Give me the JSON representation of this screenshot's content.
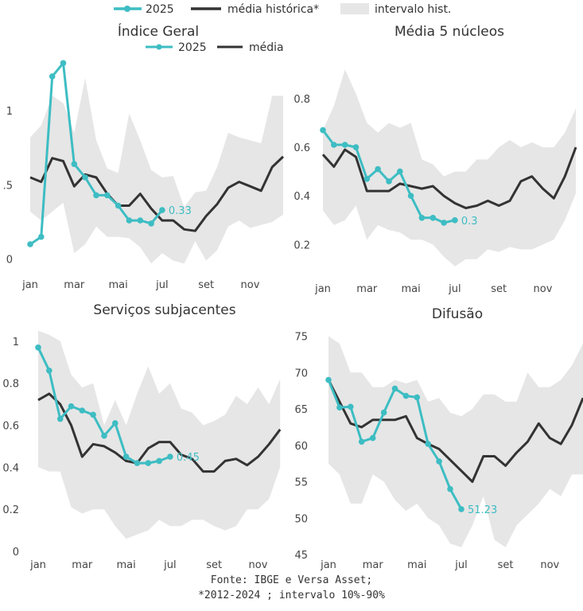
{
  "legend": {
    "series_2025": "2025",
    "series_media": "média histórica*",
    "series_band": "intervalo hist."
  },
  "colors": {
    "y2025": "#3dbdc3",
    "media": "#333333",
    "band": "#e6e6e6"
  },
  "footer": {
    "line1": "Fonte: IBGE e Versa Asset;",
    "line2": "*2012-2024 ; intervalo 10%-90%"
  },
  "chart_data": [
    {
      "type": "line",
      "title": "Índice Geral",
      "inner_legend": {
        "series_2025": "2025",
        "series_media": "média"
      },
      "x_ticks": [
        "jan",
        "mar",
        "mai",
        "jul",
        "set",
        "nov"
      ],
      "y_ticks": [
        "0",
        ".5",
        "1"
      ],
      "ylim": [
        -0.05,
        1.37
      ],
      "media": [
        0.55,
        0.52,
        0.68,
        0.66,
        0.49,
        0.57,
        0.55,
        0.44,
        0.36,
        0.36,
        0.44,
        0.34,
        0.26,
        0.26,
        0.2,
        0.19,
        0.29,
        0.37,
        0.48,
        0.52,
        0.49,
        0.46,
        0.62,
        0.69
      ],
      "band_low": [
        0.32,
        0.26,
        0.32,
        0.38,
        0.04,
        0.1,
        0.22,
        0.15,
        0.15,
        0.14,
        0.08,
        -0.03,
        0.04,
        -0.01,
        -0.03,
        0.12,
        -0.01,
        0.06,
        0.22,
        0.26,
        0.21,
        0.23,
        0.25,
        0.3
      ],
      "band_high": [
        0.82,
        0.9,
        1.1,
        1.05,
        0.85,
        1.22,
        0.8,
        0.61,
        0.58,
        0.98,
        0.8,
        0.6,
        0.55,
        0.56,
        0.35,
        0.45,
        0.46,
        0.62,
        0.85,
        0.82,
        0.8,
        0.78,
        1.1,
        1.1
      ],
      "y2025": [
        0.1,
        0.15,
        1.23,
        1.32,
        0.64,
        0.55,
        0.43,
        0.43,
        0.36,
        0.26,
        0.26,
        0.24,
        0.33
      ],
      "end_label": "0.33"
    },
    {
      "type": "line",
      "title": "Média 5 núcleos",
      "x_ticks": [
        "jan",
        "mar",
        "mai",
        "jul",
        "set",
        "nov"
      ],
      "y_ticks": [
        "0.2",
        "0.4",
        "0.6",
        "0.8"
      ],
      "ylim": [
        0.1,
        0.95
      ],
      "media": [
        0.57,
        0.52,
        0.59,
        0.56,
        0.42,
        0.42,
        0.42,
        0.45,
        0.44,
        0.43,
        0.44,
        0.4,
        0.37,
        0.35,
        0.36,
        0.38,
        0.36,
        0.38,
        0.46,
        0.48,
        0.43,
        0.39,
        0.48,
        0.6
      ],
      "band_low": [
        0.34,
        0.28,
        0.3,
        0.36,
        0.22,
        0.28,
        0.26,
        0.25,
        0.22,
        0.22,
        0.2,
        0.15,
        0.11,
        0.14,
        0.14,
        0.18,
        0.17,
        0.19,
        0.18,
        0.18,
        0.2,
        0.22,
        0.3,
        0.41
      ],
      "band_high": [
        0.67,
        0.77,
        0.92,
        0.82,
        0.7,
        0.66,
        0.7,
        0.68,
        0.7,
        0.55,
        0.53,
        0.48,
        0.5,
        0.5,
        0.55,
        0.55,
        0.6,
        0.63,
        0.6,
        0.62,
        0.6,
        0.6,
        0.66,
        0.76
      ],
      "y2025": [
        0.67,
        0.61,
        0.61,
        0.6,
        0.47,
        0.51,
        0.46,
        0.5,
        0.4,
        0.31,
        0.31,
        0.29,
        0.3
      ],
      "end_label": "0.3"
    },
    {
      "type": "line",
      "title": "Serviços subjacentes",
      "x_ticks": [
        "jan",
        "mar",
        "mai",
        "jul",
        "set",
        "nov"
      ],
      "y_ticks": [
        "0",
        "0.2",
        "0.4",
        "0.6",
        "0.8",
        "1"
      ],
      "ylim": [
        0.0,
        1.06
      ],
      "media": [
        0.72,
        0.75,
        0.7,
        0.6,
        0.45,
        0.51,
        0.5,
        0.47,
        0.43,
        0.42,
        0.49,
        0.52,
        0.52,
        0.46,
        0.44,
        0.38,
        0.38,
        0.43,
        0.44,
        0.41,
        0.45,
        0.51,
        0.58
      ],
      "band_low": [
        0.4,
        0.38,
        0.38,
        0.21,
        0.18,
        0.2,
        0.2,
        0.12,
        0.06,
        0.08,
        0.1,
        0.15,
        0.12,
        0.12,
        0.15,
        0.15,
        0.12,
        0.1,
        0.12,
        0.2,
        0.2,
        0.25,
        0.4
      ],
      "band_high": [
        1.05,
        1.03,
        1.0,
        0.84,
        0.78,
        0.8,
        0.6,
        0.72,
        0.6,
        0.75,
        0.88,
        0.75,
        0.8,
        0.68,
        0.66,
        0.6,
        0.62,
        0.65,
        0.74,
        0.7,
        0.78,
        0.7,
        0.82
      ],
      "y2025": [
        0.97,
        0.86,
        0.63,
        0.69,
        0.67,
        0.65,
        0.55,
        0.61,
        0.45,
        0.42,
        0.42,
        0.43,
        0.45
      ],
      "end_label": "0.45"
    },
    {
      "type": "line",
      "title": "Difusão",
      "x_ticks": [
        "jan",
        "mar",
        "mai",
        "jul",
        "set",
        "nov"
      ],
      "y_ticks": [
        "45",
        "50",
        "55",
        "60",
        "65",
        "70",
        "75"
      ],
      "ylim": [
        45,
        75.5
      ],
      "media": [
        69,
        66,
        63,
        62.5,
        63.5,
        63.5,
        63.5,
        64,
        61,
        60.2,
        59.5,
        58,
        56.5,
        55,
        58.5,
        58.5,
        57.2,
        59,
        60.5,
        63,
        61,
        60.2,
        62.8,
        66.5
      ],
      "band_low": [
        57.5,
        56,
        52,
        52,
        56,
        55,
        52.5,
        51,
        52,
        50,
        49,
        46.5,
        46,
        49,
        53,
        47,
        46,
        49,
        50.5,
        52,
        54,
        53,
        56,
        56
      ],
      "band_high": [
        75,
        74,
        70,
        70,
        68,
        68,
        69,
        68.5,
        69,
        66,
        66.5,
        64.5,
        64,
        65,
        67,
        67,
        66,
        66,
        70,
        68,
        68,
        69,
        71,
        74
      ],
      "y2025": [
        69,
        65.2,
        65.3,
        60.5,
        61,
        64.5,
        67.8,
        66.8,
        66.6,
        60.2,
        57.8,
        54,
        51.23
      ],
      "end_label": "51.23"
    }
  ]
}
